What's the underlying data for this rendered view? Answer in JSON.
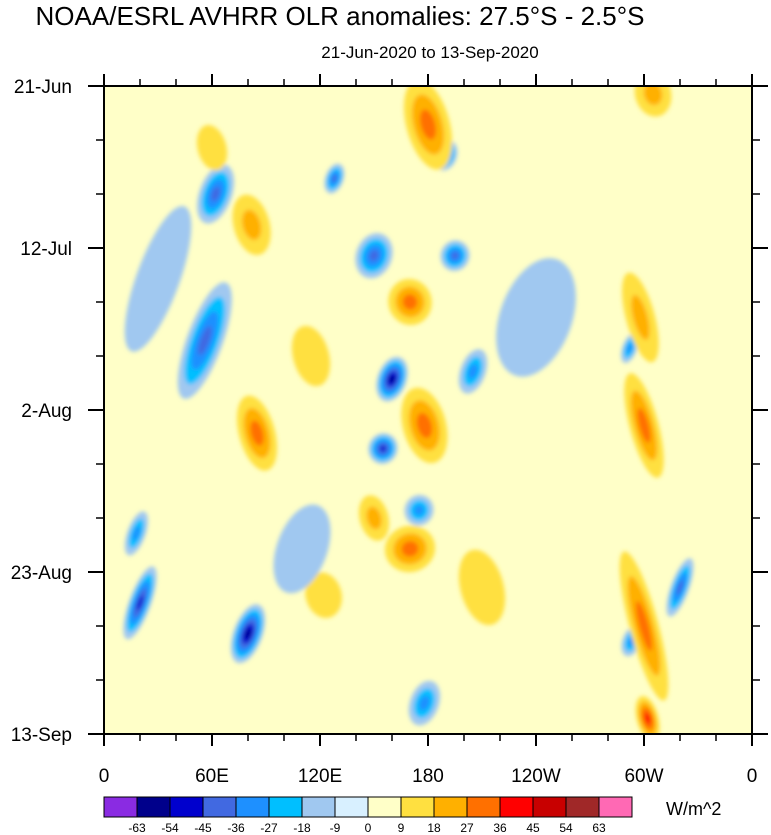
{
  "chart_data": {
    "type": "heatmap",
    "title": "NOAA/ESRL AVHRR OLR anomalies: 27.5°S - 2.5°S",
    "subtitle": "21-Jun-2020 to 13-Sep-2020",
    "x_ticks": [
      "0",
      "60E",
      "120E",
      "180",
      "120W",
      "60W",
      "0"
    ],
    "x_range_deg": [
      0,
      360
    ],
    "y_ticks": [
      "21-Jun",
      "12-Jul",
      "2-Aug",
      "23-Aug",
      "13-Sep"
    ],
    "y_range_days": [
      0,
      84
    ],
    "units": "W/m^2",
    "levels": [
      "-63",
      "-54",
      "-45",
      "-36",
      "-27",
      "-18",
      "-9",
      "0",
      "9",
      "18",
      "27",
      "36",
      "45",
      "54",
      "63"
    ],
    "palette": [
      "#8a2be2",
      "#00008b",
      "#0000cd",
      "#4169e1",
      "#1e90ff",
      "#00bfff",
      "#a0c8f0",
      "#d8f0ff",
      "#ffffc8",
      "#ffe040",
      "#ffb000",
      "#ff7000",
      "#ff0000",
      "#c80000",
      "#a02828",
      "#ff69b4"
    ],
    "features": [
      {
        "lon": 62,
        "day": 14,
        "value": -40,
        "rlon": 9,
        "rday": 4
      },
      {
        "lon": 56,
        "day": 33,
        "value": -45,
        "rlon": 10,
        "rday": 8
      },
      {
        "lon": 80,
        "day": 71,
        "value": -58,
        "rlon": 8,
        "rday": 4
      },
      {
        "lon": 20,
        "day": 67,
        "value": -52,
        "rlon": 6,
        "rday": 5
      },
      {
        "lon": 18,
        "day": 58,
        "value": -30,
        "rlon": 5,
        "rday": 3
      },
      {
        "lon": 160,
        "day": 38,
        "value": -56,
        "rlon": 8,
        "rday": 3
      },
      {
        "lon": 155,
        "day": 47,
        "value": -48,
        "rlon": 8,
        "rday": 2
      },
      {
        "lon": 150,
        "day": 22,
        "value": -40,
        "rlon": 10,
        "rday": 3
      },
      {
        "lon": 195,
        "day": 22,
        "value": -42,
        "rlon": 8,
        "rday": 2
      },
      {
        "lon": 190,
        "day": 9,
        "value": -40,
        "rlon": 6,
        "rday": 2
      },
      {
        "lon": 128,
        "day": 12,
        "value": -40,
        "rlon": 5,
        "rday": 2
      },
      {
        "lon": 205,
        "day": 37,
        "value": -30,
        "rlon": 7,
        "rday": 3
      },
      {
        "lon": 175,
        "day": 55,
        "value": -30,
        "rlon": 8,
        "rday": 2
      },
      {
        "lon": 178,
        "day": 80,
        "value": -32,
        "rlon": 8,
        "rday": 3
      },
      {
        "lon": 320,
        "day": 65,
        "value": -42,
        "rlon": 5,
        "rday": 4
      },
      {
        "lon": 292,
        "day": 34,
        "value": -30,
        "rlon": 4,
        "rday": 2
      },
      {
        "lon": 293,
        "day": 72,
        "value": -30,
        "rlon": 5,
        "rday": 2
      },
      {
        "lon": 180,
        "day": 5,
        "value": 32,
        "rlon": 12,
        "rday": 6
      },
      {
        "lon": 170,
        "day": 28,
        "value": 30,
        "rlon": 12,
        "rday": 3
      },
      {
        "lon": 178,
        "day": 44,
        "value": 30,
        "rlon": 12,
        "rday": 5
      },
      {
        "lon": 170,
        "day": 60,
        "value": 28,
        "rlon": 14,
        "rday": 3
      },
      {
        "lon": 150,
        "day": 56,
        "value": 22,
        "rlon": 8,
        "rday": 3
      },
      {
        "lon": 85,
        "day": 45,
        "value": 28,
        "rlon": 10,
        "rday": 5
      },
      {
        "lon": 82,
        "day": 18,
        "value": 24,
        "rlon": 10,
        "rday": 4
      },
      {
        "lon": 298,
        "day": 30,
        "value": 26,
        "rlon": 8,
        "rday": 6
      },
      {
        "lon": 300,
        "day": 44,
        "value": 30,
        "rlon": 8,
        "rday": 7
      },
      {
        "lon": 300,
        "day": 70,
        "value": 32,
        "rlon": 8,
        "rday": 10
      },
      {
        "lon": 302,
        "day": 82,
        "value": 38,
        "rlon": 6,
        "rday": 3
      },
      {
        "lon": 305,
        "day": 1,
        "value": 20,
        "rlon": 10,
        "rday": 3
      },
      {
        "lon": 60,
        "day": 8,
        "value": 16,
        "rlon": 8,
        "rday": 3
      },
      {
        "lon": 115,
        "day": 35,
        "value": 16,
        "rlon": 10,
        "rday": 4
      },
      {
        "lon": 122,
        "day": 66,
        "value": 18,
        "rlon": 10,
        "rday": 3
      },
      {
        "lon": 210,
        "day": 65,
        "value": 16,
        "rlon": 12,
        "rday": 5
      },
      {
        "lon": 240,
        "day": 30,
        "value": -12,
        "rlon": 20,
        "rday": 8
      },
      {
        "lon": 30,
        "day": 25,
        "value": -12,
        "rlon": 12,
        "rday": 10
      },
      {
        "lon": 110,
        "day": 60,
        "value": -12,
        "rlon": 14,
        "rday": 6
      }
    ]
  }
}
